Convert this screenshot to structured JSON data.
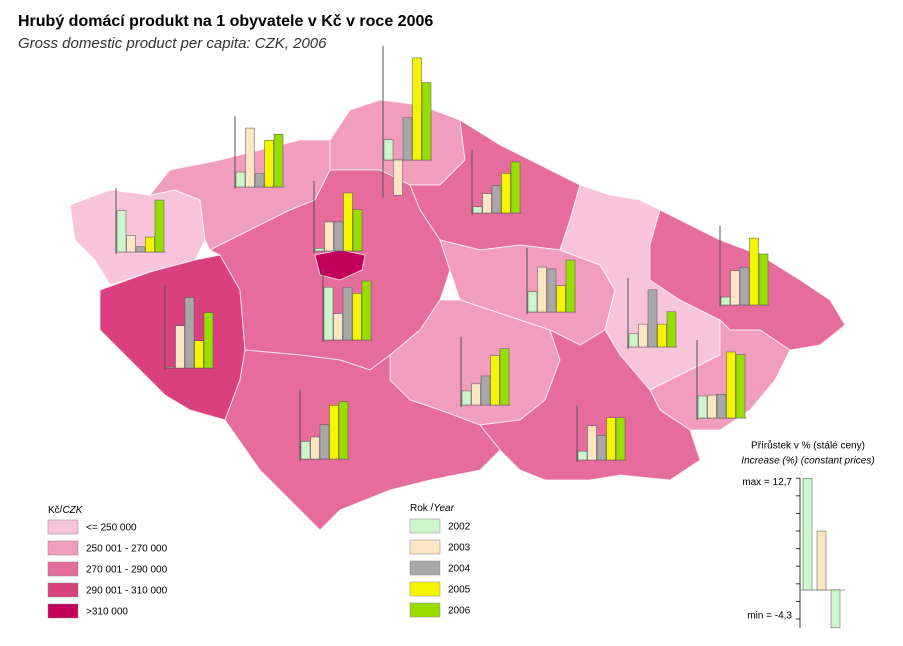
{
  "header": {
    "title": "Hrubý domácí produkt na 1 obyvatele v Kč v roce 2006",
    "subtitle": "Gross domestic product per capita: CZK, 2006"
  },
  "choropleth_legend": {
    "title_cz": "Kč",
    "title_en": "CZK",
    "classes": [
      {
        "label": "<= 250 000",
        "color": "#f7c4da"
      },
      {
        "label": "250 001 - 270 000",
        "color": "#f09dbe"
      },
      {
        "label": "270 001 - 290 000",
        "color": "#e56c9b"
      },
      {
        "label": "290 001 - 310 000",
        "color": "#d8417e"
      },
      {
        "label": ">310 000",
        "color": "#c2005c"
      }
    ]
  },
  "years_legend": {
    "title_cz": "Rok",
    "title_en": "Year",
    "series": [
      {
        "name": "2002",
        "color": "#ccf5cc"
      },
      {
        "name": "2003",
        "color": "#fbe5c2"
      },
      {
        "name": "2004",
        "color": "#a8a8a8"
      },
      {
        "name": "2005",
        "color": "#f5f500"
      },
      {
        "name": "2006",
        "color": "#99dd00"
      }
    ]
  },
  "scale": {
    "title_cz": "Přírůstek v % (stálé ceny)",
    "title_en": "Increase (%) (constant prices)",
    "max": {
      "value": 12.7,
      "label": "max = 12,7"
    },
    "example": 6.7,
    "min": {
      "value": -4.3,
      "label": "min = -4,3"
    }
  },
  "region_charts": [
    [
      1.7,
      6.7,
      1.5,
      5.3,
      6.0
    ],
    [
      2.3,
      -4.0,
      4.8,
      11.6,
      8.8
    ],
    [
      4.7,
      1.9,
      0.6,
      1.7,
      5.9
    ],
    [
      0.3,
      3.3,
      3.3,
      6.6,
      4.7
    ],
    [
      0.7,
      2.2,
      3.1,
      4.5,
      5.8
    ],
    [
      6.0,
      3.0,
      6.0,
      5.3,
      6.7
    ],
    [
      0.1,
      4.8,
      8.0,
      3.1,
      6.3
    ],
    [
      2.3,
      5.1,
      4.9,
      3.0,
      5.9
    ],
    [
      1.5,
      2.6,
      6.5,
      2.6,
      4.0
    ],
    [
      0.9,
      3.9,
      4.3,
      7.6,
      5.8
    ],
    [
      1.6,
      2.4,
      3.3,
      5.6,
      6.4
    ],
    [
      2.5,
      2.6,
      2.7,
      7.5,
      7.2
    ],
    [
      2.0,
      2.5,
      3.9,
      6.1,
      6.5
    ],
    [
      1.0,
      3.9,
      2.8,
      4.8,
      4.8
    ]
  ]
}
